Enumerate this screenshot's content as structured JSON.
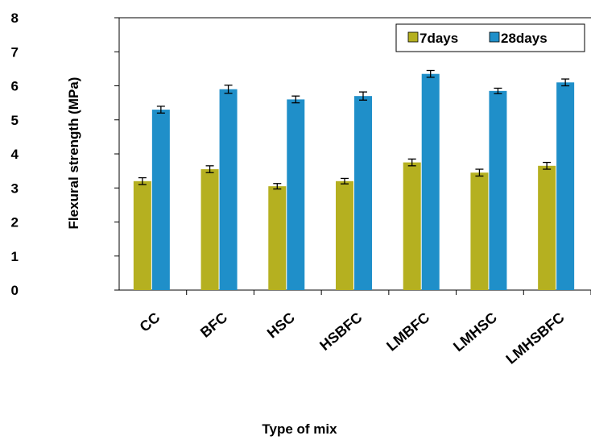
{
  "chart_data": {
    "type": "bar",
    "categories": [
      "CC",
      "BFC",
      "HSC",
      "HSBFC",
      "LMBFC",
      "LMHSC",
      "LMHSBFC"
    ],
    "series": [
      {
        "name": "7days",
        "values": [
          3.2,
          3.55,
          3.05,
          3.2,
          3.75,
          3.45,
          3.65
        ],
        "errors": [
          0.1,
          0.1,
          0.08,
          0.08,
          0.1,
          0.1,
          0.1
        ],
        "color": "#b5b020"
      },
      {
        "name": "28days",
        "values": [
          5.3,
          5.9,
          5.6,
          5.7,
          6.35,
          5.85,
          6.1
        ],
        "errors": [
          0.1,
          0.12,
          0.1,
          0.12,
          0.1,
          0.08,
          0.1
        ],
        "color": "#1f8fc9"
      }
    ],
    "ylabel": "Flexural strength (MPa)",
    "xlabel": "Type of mix",
    "ylim": [
      0,
      8
    ],
    "yticks": [
      0,
      1,
      2,
      3,
      4,
      5,
      6,
      7,
      8
    ],
    "legend_position": "top-right",
    "grid": false
  }
}
